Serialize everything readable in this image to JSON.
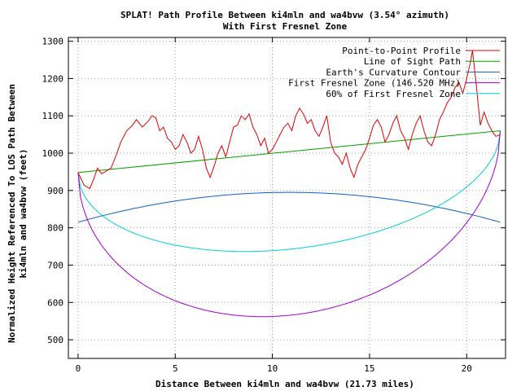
{
  "chart_data": {
    "type": "line",
    "title": "SPLAT! Path Profile Between ki4mln and wa4bvw (3.54° azimuth)",
    "subtitle": "With First Fresnel Zone",
    "xlabel": "Distance Between ki4mln and wa4bvw (21.73 miles)",
    "ylabel_lines": [
      "Normalized Height Referenced To LOS Path Between",
      "ki4mln and wa4bvw (feet)"
    ],
    "xlim": [
      -0.5,
      22
    ],
    "ylim": [
      450,
      1310
    ],
    "x_ticks": [
      0,
      5,
      10,
      15,
      20
    ],
    "x_tick_labels": [
      "0",
      "5",
      "10",
      "15",
      "20"
    ],
    "y_ticks": [
      500,
      600,
      700,
      800,
      900,
      1000,
      1100,
      1200,
      1300
    ],
    "y_tick_labels": [
      "500",
      "600",
      "700",
      "800",
      "900",
      "1000",
      "1100",
      "1200",
      "1300"
    ],
    "grid": true,
    "legend_position": "top-right",
    "series": [
      {
        "name": "Point-to-Point Profile",
        "color": "#e00000",
        "x": [
          0,
          0.3,
          0.6,
          0.8,
          1.0,
          1.2,
          1.4,
          1.7,
          2.0,
          2.2,
          2.5,
          2.8,
          3.0,
          3.3,
          3.6,
          3.8,
          4.0,
          4.2,
          4.4,
          4.6,
          4.8,
          5.0,
          5.2,
          5.4,
          5.6,
          5.8,
          6.0,
          6.2,
          6.4,
          6.6,
          6.8,
          7.0,
          7.2,
          7.4,
          7.6,
          7.8,
          8.0,
          8.2,
          8.4,
          8.6,
          8.8,
          9.0,
          9.2,
          9.4,
          9.6,
          9.8,
          10.0,
          10.2,
          10.4,
          10.6,
          10.8,
          11.0,
          11.2,
          11.4,
          11.6,
          11.8,
          12.0,
          12.2,
          12.4,
          12.6,
          12.8,
          13.0,
          13.2,
          13.4,
          13.6,
          13.8,
          14.0,
          14.2,
          14.4,
          14.6,
          14.8,
          15.0,
          15.2,
          15.4,
          15.6,
          15.8,
          16.0,
          16.2,
          16.4,
          16.6,
          16.8,
          17.0,
          17.2,
          17.4,
          17.6,
          17.8,
          18.0,
          18.2,
          18.4,
          18.6,
          18.8,
          19.0,
          19.2,
          19.4,
          19.6,
          19.8,
          20.0,
          20.2,
          20.3,
          20.5,
          20.7,
          20.9,
          21.1,
          21.3,
          21.5,
          21.73
        ],
        "y": [
          948,
          915,
          905,
          930,
          960,
          945,
          950,
          960,
          1000,
          1030,
          1060,
          1075,
          1090,
          1070,
          1085,
          1100,
          1095,
          1060,
          1070,
          1040,
          1030,
          1010,
          1020,
          1050,
          1030,
          1000,
          1010,
          1045,
          1010,
          960,
          935,
          965,
          1000,
          1020,
          990,
          1030,
          1070,
          1075,
          1100,
          1090,
          1105,
          1070,
          1050,
          1020,
          1040,
          1000,
          1010,
          1030,
          1050,
          1070,
          1080,
          1060,
          1100,
          1120,
          1105,
          1080,
          1090,
          1060,
          1045,
          1070,
          1100,
          1030,
          1000,
          990,
          970,
          1000,
          960,
          935,
          970,
          990,
          1010,
          1040,
          1075,
          1090,
          1070,
          1030,
          1050,
          1080,
          1100,
          1060,
          1040,
          1010,
          1050,
          1080,
          1100,
          1060,
          1030,
          1020,
          1050,
          1090,
          1110,
          1135,
          1150,
          1175,
          1190,
          1160,
          1200,
          1245,
          1275,
          1180,
          1075,
          1110,
          1080,
          1060,
          1045,
          1050
        ]
      },
      {
        "name": "Line of Sight Path",
        "color": "#00a000",
        "x": [
          0,
          21.73
        ],
        "y": [
          948,
          1060
        ]
      },
      {
        "name": "Earth's Curvature Contour",
        "color": "#1060c0",
        "x": [
          0,
          10.865,
          21.73
        ],
        "y": [
          815,
          895,
          815
        ]
      },
      {
        "name": "First Fresnel Zone (146.520 MHz)",
        "color": "#a000d0",
        "x": [
          0,
          9.6,
          21.73
        ],
        "y": [
          948,
          562,
          1060
        ]
      },
      {
        "name": "60% of First Fresnel Zone",
        "color": "#00d0d0",
        "x": [
          0,
          9.2,
          21.73
        ],
        "y": [
          948,
          737,
          1060
        ]
      }
    ]
  }
}
